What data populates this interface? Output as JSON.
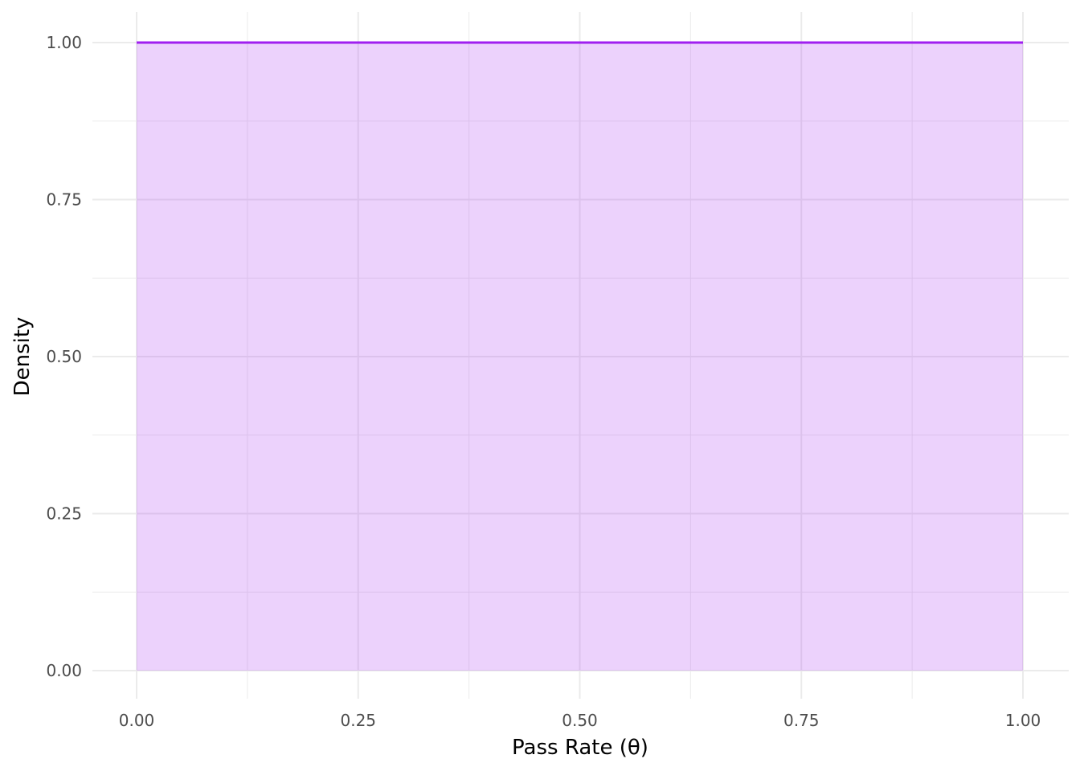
{
  "chart_data": {
    "type": "area",
    "title": "",
    "xlabel": "Pass Rate (θ)",
    "ylabel": "Density",
    "xlim": [
      0,
      1
    ],
    "ylim": [
      0,
      1
    ],
    "x": [
      0,
      1
    ],
    "y": [
      1,
      1
    ],
    "xticks": [
      "0.00",
      "0.25",
      "0.50",
      "0.75",
      "1.00"
    ],
    "yticks": [
      "0.00",
      "0.25",
      "0.50",
      "0.75",
      "1.00"
    ],
    "grid": true,
    "colors": {
      "line": "#A020F0",
      "fill": "#A020F0",
      "fill_opacity": 0.2
    }
  }
}
